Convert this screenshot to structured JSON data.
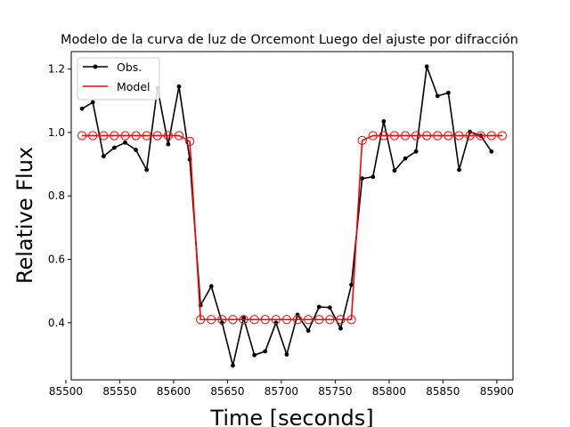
{
  "chart_data": {
    "type": "line",
    "title": "Modelo de la curva de luz de Orcemont Luego del ajuste por difracción",
    "xlabel": "Time [seconds]",
    "ylabel": "Relative Flux",
    "xlim": [
      85505,
      85915
    ],
    "ylim": [
      0.22,
      1.255
    ],
    "xticks": [
      85500,
      85550,
      85600,
      85650,
      85700,
      85750,
      85800,
      85850,
      85900
    ],
    "yticks": [
      0.4,
      0.6,
      0.8,
      1.0,
      1.2
    ],
    "xtick_labels": [
      "85500",
      "85550",
      "85600",
      "85650",
      "85700",
      "85750",
      "85800",
      "85850",
      "85900"
    ],
    "ytick_labels": [
      "0.4",
      "0.6",
      "0.8",
      "1.0",
      "1.2"
    ],
    "grid": false,
    "legend_position": "top-left",
    "series": [
      {
        "name": "Obs.",
        "color": "#000000",
        "marker": "dot",
        "x": [
          85515,
          85525,
          85535,
          85545,
          85555,
          85565,
          85575,
          85585,
          85595,
          85605,
          85615,
          85625,
          85635,
          85645,
          85655,
          85665,
          85675,
          85685,
          85695,
          85705,
          85715,
          85725,
          85735,
          85745,
          85755,
          85765,
          85775,
          85785,
          85795,
          85805,
          85815,
          85825,
          85835,
          85845,
          85855,
          85865,
          85875,
          85885,
          85895
        ],
        "y": [
          1.075,
          1.095,
          0.925,
          0.952,
          0.968,
          0.945,
          0.882,
          1.14,
          0.963,
          1.145,
          0.915,
          0.455,
          0.515,
          0.4,
          0.265,
          0.415,
          0.298,
          0.31,
          0.4,
          0.3,
          0.425,
          0.375,
          0.45,
          0.448,
          0.382,
          0.52,
          0.855,
          0.86,
          1.035,
          0.88,
          0.918,
          0.94,
          1.208,
          1.115,
          1.125,
          0.882,
          1.002,
          0.99,
          0.94
        ]
      },
      {
        "name": "Model",
        "color": "#ff0000",
        "marker": "open-circle",
        "x": [
          85515,
          85525,
          85535,
          85545,
          85555,
          85565,
          85575,
          85585,
          85595,
          85605,
          85615,
          85625,
          85635,
          85645,
          85655,
          85665,
          85675,
          85685,
          85695,
          85705,
          85715,
          85725,
          85735,
          85745,
          85755,
          85765,
          85775,
          85785,
          85795,
          85805,
          85815,
          85825,
          85835,
          85845,
          85855,
          85865,
          85875,
          85885,
          85895,
          85905
        ],
        "y": [
          0.99,
          0.99,
          0.99,
          0.99,
          0.99,
          0.99,
          0.99,
          0.99,
          0.99,
          0.99,
          0.972,
          0.41,
          0.41,
          0.41,
          0.41,
          0.41,
          0.41,
          0.41,
          0.41,
          0.41,
          0.41,
          0.41,
          0.41,
          0.41,
          0.41,
          0.41,
          0.975,
          0.99,
          0.99,
          0.99,
          0.99,
          0.99,
          0.99,
          0.99,
          0.99,
          0.99,
          0.99,
          0.99,
          0.99,
          0.99
        ]
      }
    ]
  }
}
